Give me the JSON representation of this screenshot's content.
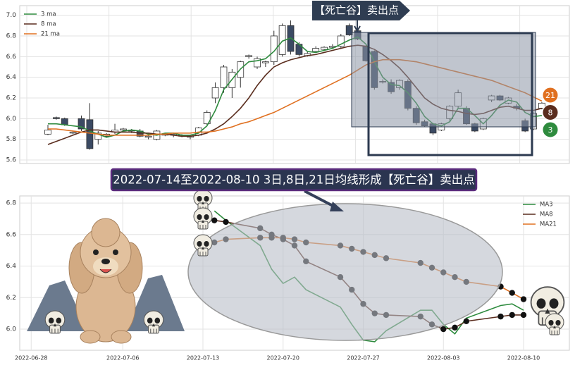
{
  "chart_data": [
    {
      "type": "candlestick",
      "annotation": "【死亡谷】卖出点",
      "open": [
        5.85,
        6.01,
        6.0,
        5.86,
        6.0,
        5.99,
        5.8,
        5.83,
        5.87,
        5.89,
        5.88,
        5.88,
        5.82,
        5.8,
        5.84,
        5.84,
        5.83,
        5.82,
        5.84,
        5.95,
        6.2,
        6.3,
        6.3,
        6.4,
        6.6,
        6.5,
        6.54,
        6.55,
        6.62,
        6.9,
        6.72,
        6.61,
        6.65,
        6.67,
        6.69,
        6.7,
        6.9,
        6.85,
        6.7,
        6.65,
        6.36,
        6.35,
        6.3,
        6.36,
        6.1,
        5.97,
        5.95,
        5.89,
        6.0,
        6.12,
        6.1,
        5.95,
        5.9,
        6.18,
        6.22,
        6.15,
        6.12,
        5.98,
        5.9,
        6.1
      ],
      "high": [
        5.94,
        6.02,
        6.01,
        5.88,
        6.03,
        6.15,
        5.88,
        5.86,
        5.95,
        5.91,
        5.9,
        5.9,
        5.84,
        5.89,
        5.86,
        5.86,
        5.85,
        5.84,
        5.92,
        6.08,
        6.35,
        6.52,
        6.48,
        6.56,
        6.62,
        6.6,
        6.56,
        6.85,
        6.92,
        6.95,
        6.74,
        6.65,
        6.7,
        6.7,
        6.72,
        6.82,
        6.92,
        6.88,
        6.72,
        6.66,
        6.38,
        6.38,
        6.38,
        6.38,
        6.12,
        5.99,
        5.96,
        5.96,
        6.13,
        6.28,
        6.12,
        5.96,
        6.01,
        6.23,
        6.23,
        6.21,
        6.14,
        6.0,
        6.06,
        6.16
      ],
      "low": [
        5.84,
        5.99,
        5.93,
        5.85,
        5.88,
        5.7,
        5.75,
        5.82,
        5.85,
        5.87,
        5.86,
        5.82,
        5.8,
        5.79,
        5.83,
        5.82,
        5.82,
        5.8,
        5.83,
        5.94,
        6.15,
        6.25,
        6.2,
        6.3,
        6.58,
        6.48,
        6.5,
        6.52,
        6.6,
        6.62,
        6.6,
        6.6,
        6.64,
        6.66,
        6.68,
        6.68,
        6.8,
        6.76,
        6.55,
        6.28,
        6.34,
        6.24,
        6.28,
        6.08,
        5.94,
        5.92,
        5.84,
        5.88,
        5.98,
        6.1,
        5.94,
        5.87,
        5.89,
        6.16,
        6.17,
        6.14,
        6.08,
        5.87,
        5.89,
        6.09
      ],
      "close": [
        5.89,
        6.0,
        5.94,
        5.87,
        5.9,
        5.71,
        5.86,
        5.85,
        5.89,
        5.9,
        5.89,
        5.83,
        5.83,
        5.88,
        5.85,
        5.85,
        5.84,
        5.83,
        5.91,
        6.06,
        6.3,
        6.5,
        6.45,
        6.55,
        6.61,
        6.58,
        6.55,
        6.8,
        6.9,
        6.65,
        6.62,
        6.63,
        6.68,
        6.69,
        6.7,
        6.8,
        6.81,
        6.77,
        6.56,
        6.3,
        6.36,
        6.26,
        6.37,
        6.1,
        5.96,
        5.93,
        5.86,
        5.95,
        6.12,
        6.25,
        5.95,
        5.88,
        6.0,
        6.22,
        6.18,
        6.2,
        6.1,
        5.88,
        6.05,
        6.15
      ],
      "up_color": "#ffffff",
      "down_color": "#3b4a63",
      "series": [
        {
          "name": "3 ma",
          "badge": "3",
          "color": "#2e8b3e",
          "values": [
            5.95,
            5.95,
            5.94,
            5.93,
            5.92,
            5.88,
            5.85,
            5.82,
            5.84,
            5.88,
            5.89,
            5.88,
            5.85,
            5.84,
            5.86,
            5.86,
            5.84,
            5.84,
            5.86,
            5.93,
            6.08,
            6.28,
            6.38,
            6.48,
            6.55,
            6.56,
            6.58,
            6.65,
            6.75,
            6.78,
            6.72,
            6.65,
            6.64,
            6.66,
            6.68,
            6.72,
            6.76,
            6.79,
            6.72,
            6.55,
            6.4,
            6.33,
            6.32,
            6.25,
            6.15,
            6.02,
            5.95,
            5.93,
            5.97,
            6.1,
            6.1,
            6.03,
            5.95,
            6.03,
            6.13,
            6.18,
            6.16,
            6.06,
            6.02,
            6.03
          ]
        },
        {
          "name": "8 ma",
          "badge": "8",
          "color": "#5a2d1e",
          "values": [
            5.75,
            5.78,
            5.81,
            5.84,
            5.87,
            5.89,
            5.89,
            5.88,
            5.87,
            5.87,
            5.87,
            5.86,
            5.86,
            5.85,
            5.85,
            5.84,
            5.83,
            5.83,
            5.84,
            5.86,
            5.9,
            5.95,
            6.02,
            6.1,
            6.2,
            6.32,
            6.42,
            6.5,
            6.54,
            6.57,
            6.59,
            6.61,
            6.62,
            6.64,
            6.66,
            6.68,
            6.7,
            6.71,
            6.7,
            6.67,
            6.62,
            6.56,
            6.49,
            6.4,
            6.3,
            6.2,
            6.14,
            6.1,
            6.08,
            6.07,
            6.05,
            6.04,
            6.05,
            6.08,
            6.11,
            6.12,
            6.1,
            6.08,
            6.08,
            6.1
          ]
        },
        {
          "name": "21 ma",
          "badge": "21",
          "color": "#e07020",
          "values": [
            5.9,
            5.9,
            5.89,
            5.88,
            5.87,
            5.86,
            5.85,
            5.84,
            5.84,
            5.84,
            5.84,
            5.84,
            5.84,
            5.85,
            5.85,
            5.86,
            5.86,
            5.86,
            5.87,
            5.87,
            5.88,
            5.9,
            5.92,
            5.95,
            5.97,
            6.0,
            6.03,
            6.06,
            6.1,
            6.14,
            6.18,
            6.22,
            6.26,
            6.3,
            6.34,
            6.38,
            6.42,
            6.47,
            6.52,
            6.55,
            6.57,
            6.57,
            6.57,
            6.56,
            6.55,
            6.53,
            6.51,
            6.49,
            6.47,
            6.45,
            6.43,
            6.41,
            6.39,
            6.37,
            6.34,
            6.31,
            6.28,
            6.25,
            6.21,
            6.17
          ]
        }
      ],
      "ylim": [
        5.566,
        7.093
      ],
      "yticks": [
        5.6,
        5.8,
        {
          "value": 6,
          "label": "6.0"
        },
        6.2,
        6.4,
        6.6,
        6.8,
        {
          "value": 7,
          "label": "7.0"
        }
      ],
      "grid": true,
      "legend": "upper left"
    },
    {
      "type": "line",
      "title": "2022-07-14至2022-08-10 3日,8日,21日均线形成【死亡谷】卖出点",
      "x": [
        "2022-07-14",
        "2022-07-15",
        "2022-07-18",
        "2022-07-19",
        "2022-07-20",
        "2022-07-21",
        "2022-07-22",
        "2022-07-25",
        "2022-07-26",
        "2022-07-27",
        "2022-07-28",
        "2022-07-29",
        "2022-08-01",
        "2022-08-02",
        "2022-08-03",
        "2022-08-04",
        "2022-08-05",
        "2022-08-08",
        "2022-08-09",
        "2022-08-10"
      ],
      "series": [
        {
          "name": "MA3",
          "color": "#2e8b3e",
          "markers": false,
          "values": [
            6.75,
            6.69,
            6.53,
            6.38,
            6.29,
            6.33,
            6.25,
            6.14,
            6.03,
            5.93,
            5.92,
            5.99,
            6.12,
            6.12,
            6.03,
            5.97,
            6.07,
            6.15,
            6.16,
            6.12
          ]
        },
        {
          "name": "MA8",
          "color": "#5a2d1e",
          "markers": true,
          "values": [
            6.69,
            6.68,
            6.64,
            6.6,
            6.57,
            6.53,
            6.43,
            6.33,
            6.25,
            6.16,
            6.1,
            6.09,
            6.08,
            6.03,
            6.0,
            6.01,
            6.05,
            6.08,
            6.09,
            6.09
          ]
        },
        {
          "name": "MA21",
          "color": "#e07020",
          "markers": true,
          "values": [
            6.55,
            6.57,
            6.58,
            6.58,
            6.58,
            6.57,
            6.55,
            6.53,
            6.51,
            6.49,
            6.47,
            6.45,
            6.42,
            6.39,
            6.36,
            6.33,
            6.3,
            6.27,
            6.23,
            6.19
          ]
        }
      ],
      "xlim": [
        "2022-06-27",
        "2022-08-14"
      ],
      "xticks": [
        "2022-06-28",
        "2022-07-06",
        "2022-07-13",
        "2022-07-20",
        "2022-07-27",
        "2022-08-03",
        "2022-08-10"
      ],
      "ylim": [
        5.866,
        6.845
      ],
      "yticks": [
        {
          "value": 6,
          "label": "6.0"
        },
        6.2,
        6.4,
        6.6,
        6.8
      ],
      "grid": true,
      "legend": "upper right"
    }
  ]
}
